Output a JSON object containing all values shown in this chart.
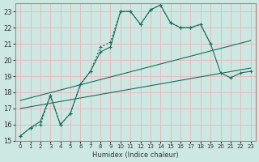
{
  "xlabel": "Humidex (Indice chaleur)",
  "bg_color": "#cde8e2",
  "grid_color": "#e8b4b8",
  "spine_color": "#c87878",
  "line_color": "#1a6b5a",
  "xlim": [
    -0.5,
    23.5
  ],
  "ylim": [
    15,
    23.5
  ],
  "yticks": [
    15,
    16,
    17,
    18,
    19,
    20,
    21,
    22,
    23
  ],
  "xticks": [
    0,
    1,
    2,
    3,
    4,
    5,
    6,
    7,
    8,
    9,
    10,
    11,
    12,
    13,
    14,
    15,
    16,
    17,
    18,
    19,
    20,
    21,
    22,
    23
  ],
  "series": [
    {
      "x": [
        0,
        1,
        2,
        3,
        4,
        5,
        6,
        7,
        8,
        9,
        10,
        11,
        12,
        13,
        14,
        15,
        16,
        17,
        18,
        19
      ],
      "y": [
        15.3,
        15.8,
        16.0,
        17.8,
        16.0,
        16.7,
        18.5,
        19.3,
        20.8,
        21.1,
        23.0,
        23.0,
        22.2,
        23.1,
        23.4,
        22.3,
        22.0,
        22.0,
        22.2,
        21.0
      ],
      "style": "dotted",
      "marker": true
    },
    {
      "x": [
        0,
        1,
        2,
        3,
        4,
        5,
        6,
        7,
        8,
        9,
        10,
        11,
        12,
        13,
        14,
        15,
        16,
        17,
        18,
        19,
        20,
        21,
        22,
        23
      ],
      "y": [
        15.3,
        15.8,
        16.2,
        17.8,
        16.0,
        16.7,
        18.5,
        19.3,
        20.5,
        20.8,
        23.0,
        23.0,
        22.2,
        23.1,
        23.4,
        22.3,
        22.0,
        22.0,
        22.2,
        21.0,
        19.2,
        18.9,
        19.2,
        19.3
      ],
      "style": "solid",
      "marker": true
    },
    {
      "x": [
        0,
        23
      ],
      "y": [
        17.5,
        21.2
      ],
      "style": "solid",
      "marker": false
    },
    {
      "x": [
        0,
        23
      ],
      "y": [
        17.0,
        19.5
      ],
      "style": "solid",
      "marker": false
    }
  ]
}
